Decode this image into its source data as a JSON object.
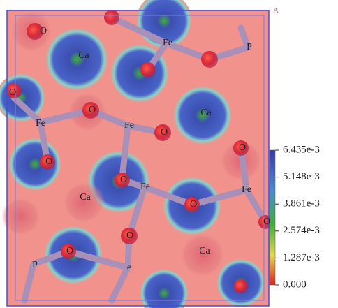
{
  "corner_label": "A",
  "atom_labels": [
    "O",
    "Fe",
    "P",
    "Ca",
    "O",
    "Fe",
    "O",
    "Fe",
    "O",
    "Ca",
    "O",
    "O",
    "O",
    "Fe",
    "Fe",
    "Ca",
    "O",
    "O",
    "Ca",
    "O",
    "O",
    "P",
    "e"
  ],
  "colorbar": {
    "lim": [
      0,
      0.006435
    ],
    "ticks": [
      {
        "value": 0.006435,
        "label": "6.435e-3"
      },
      {
        "value": 0.005148,
        "label": "5.148e-3"
      },
      {
        "value": 0.003861,
        "label": "3.861e-3"
      },
      {
        "value": 0.002574,
        "label": "2.574e-3"
      },
      {
        "value": 0.001287,
        "label": "1.287e-3"
      },
      {
        "value": 0,
        "label": "0.000"
      }
    ]
  }
}
